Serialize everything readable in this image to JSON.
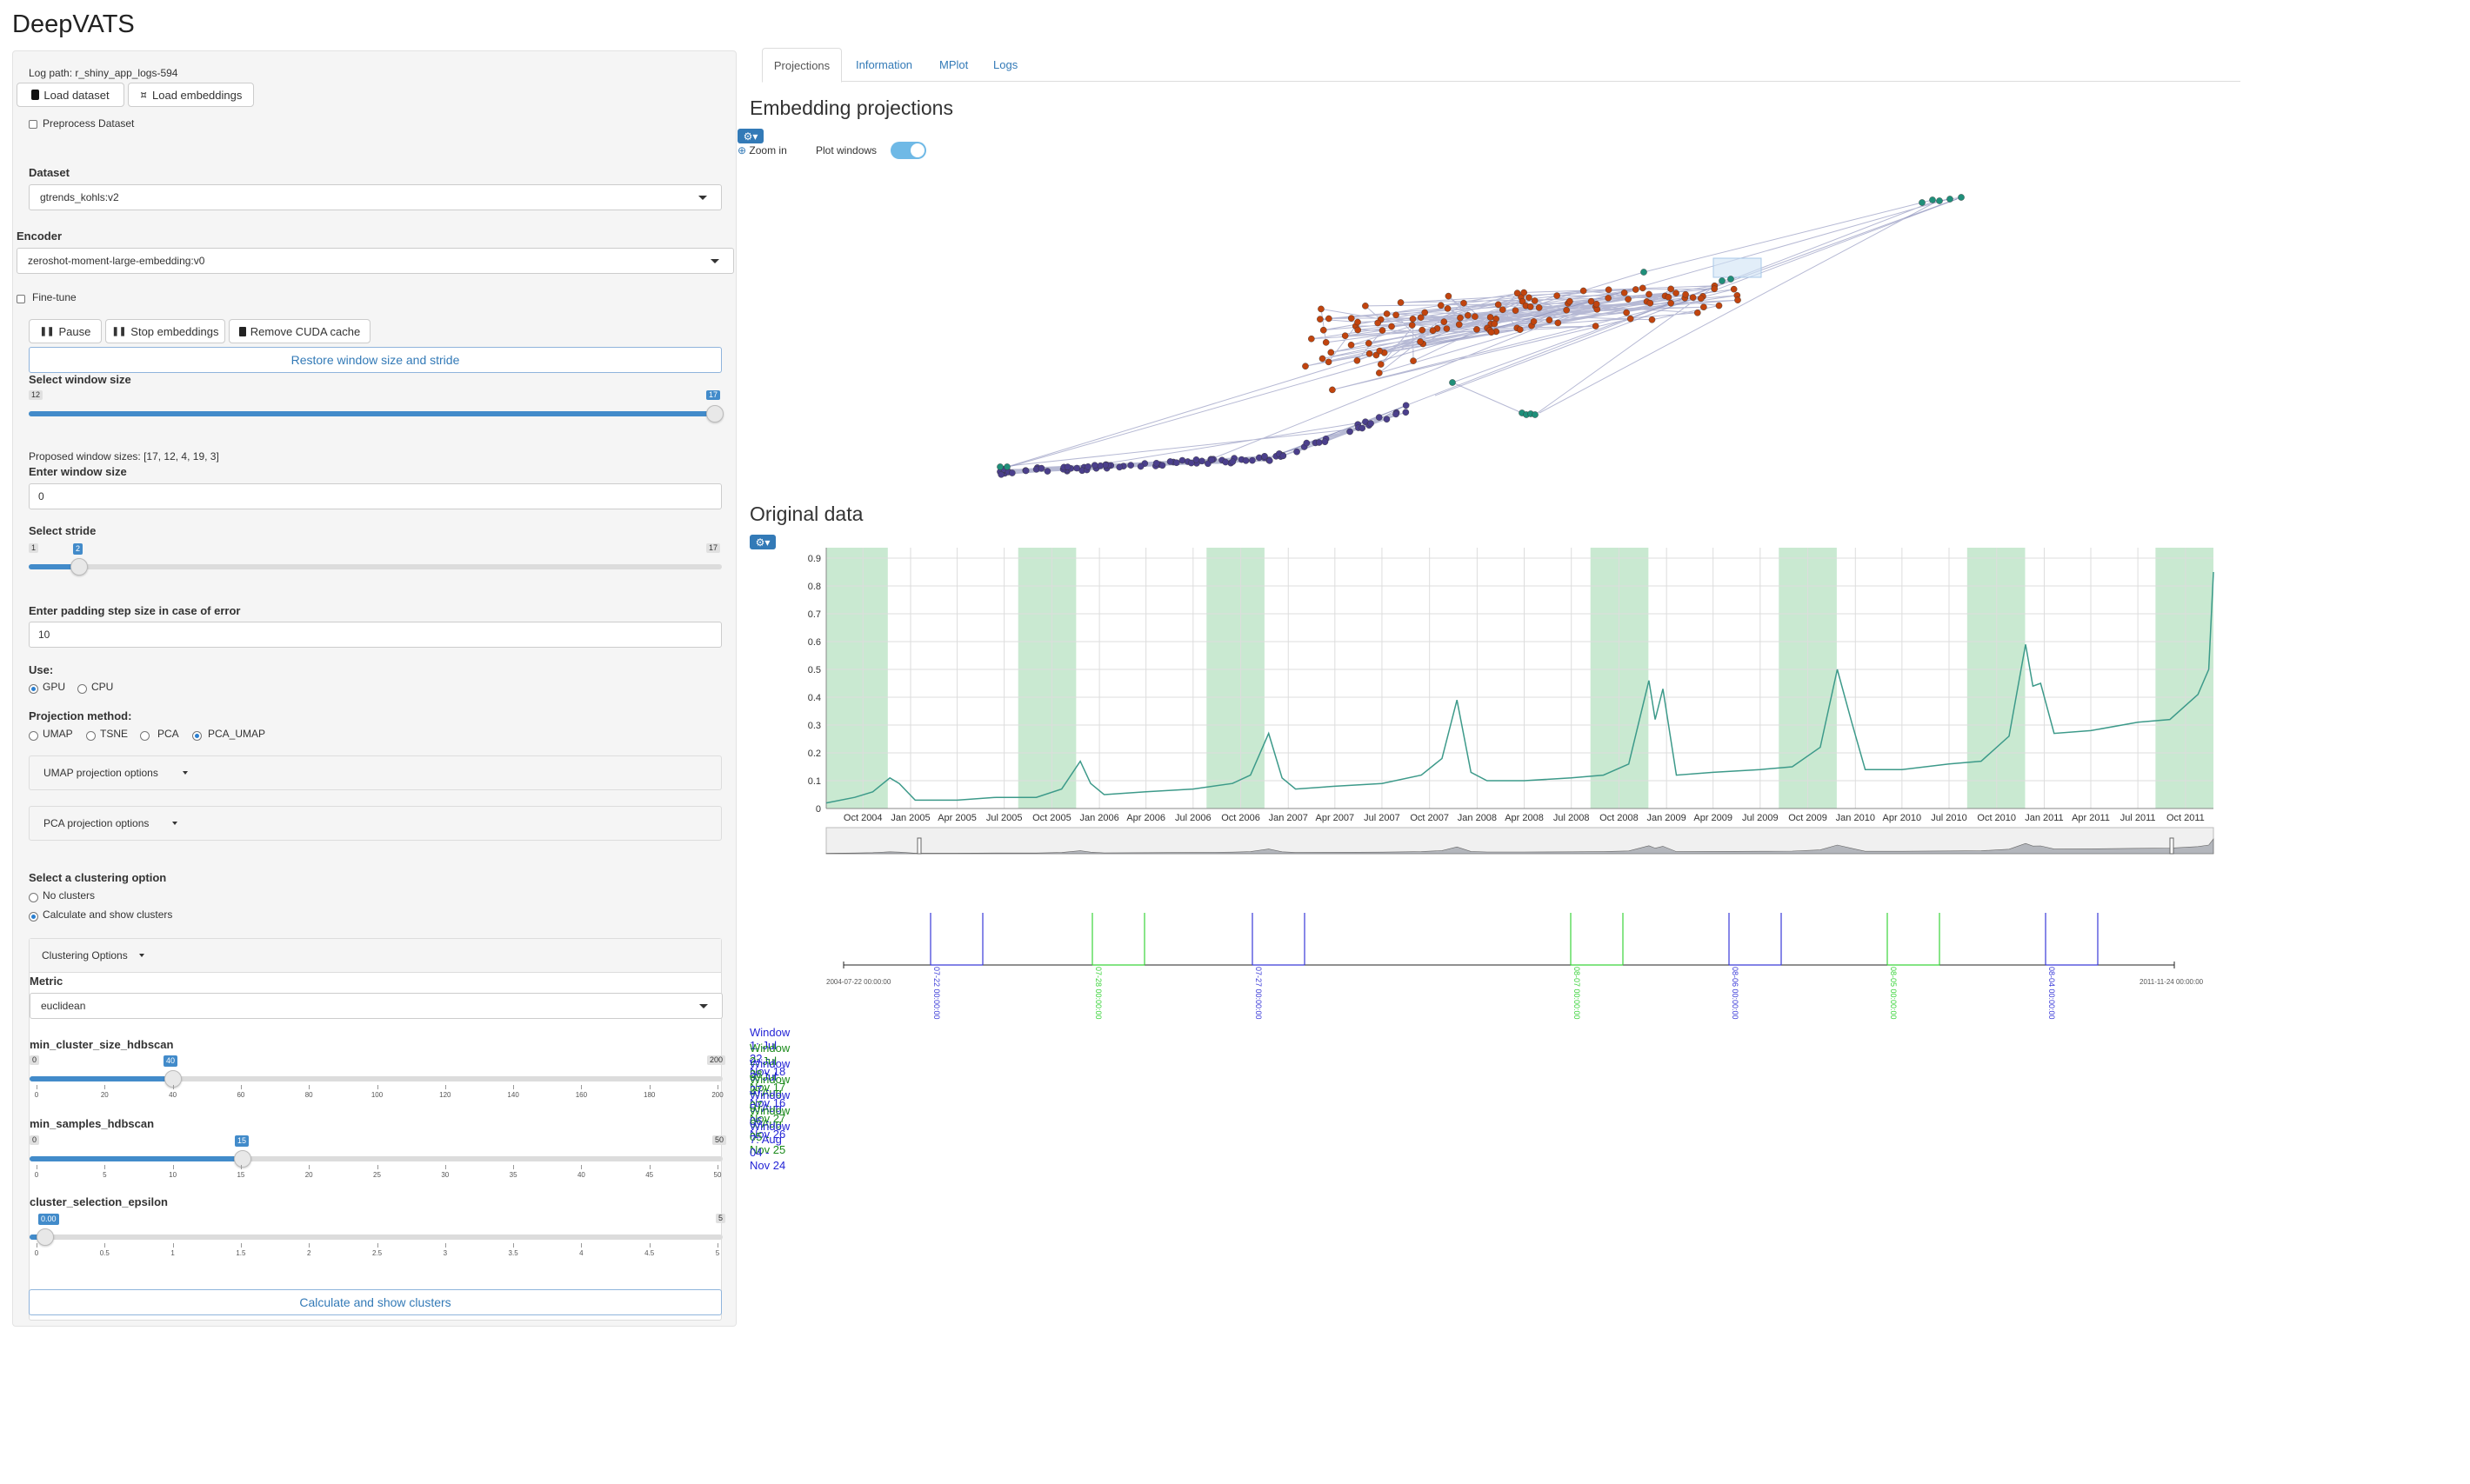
{
  "app": {
    "title": "DeepVATS"
  },
  "sidebar": {
    "log_path": "Log path: r_shiny_app_logs-594",
    "load_dataset": "Load dataset",
    "load_embeddings": "Load embeddings",
    "preprocess": "Preprocess Dataset",
    "dataset_label": "Dataset",
    "dataset_value": "gtrends_kohls:v2",
    "encoder_label": "Encoder",
    "encoder_value": "zeroshot-moment-large-embedding:v0",
    "finetune": "Fine-tune",
    "pause": "Pause",
    "stop_embeddings": "Stop embeddings",
    "remove_cuda": "Remove CUDA cache",
    "restore": "Restore window size and stride",
    "window_size_label": "Select window size",
    "window_size_min": "12",
    "window_size_max": "17",
    "window_size_value": "17",
    "window_size_fraction": 1.0,
    "proposed": "Proposed window sizes: [17, 12, 4, 19, 3]",
    "enter_window_label": "Enter window size",
    "enter_window_value": "0",
    "stride_label": "Select stride",
    "stride_min": "1",
    "stride_max": "17",
    "stride_value": "2",
    "padding_label": "Enter padding step size in case of error",
    "padding_value": "10",
    "use_label": "Use:",
    "use_gpu": "GPU",
    "use_cpu": "CPU",
    "projection_label": "Projection method:",
    "proj_umap": "UMAP",
    "proj_tsne": "TSNE",
    "proj_pca": "PCA",
    "proj_pcaumap": "PCA_UMAP",
    "umap_options": "UMAP projection options",
    "pca_options": "PCA projection options",
    "clustering_label": "Select a clustering option",
    "no_clusters": "No clusters",
    "calc_clusters": "Calculate and show clusters",
    "clustering_options": "Clustering Options",
    "metric_label": "Metric",
    "metric_value": "euclidean",
    "mcs_label": "min_cluster_size_hdbscan",
    "mcs_min": "0",
    "mcs_max": "200",
    "mcs_value": "40",
    "mcs_ticks": [
      "0",
      "20",
      "40",
      "60",
      "80",
      "100",
      "120",
      "140",
      "160",
      "180",
      "200"
    ],
    "ms_label": "min_samples_hdbscan",
    "ms_min": "0",
    "ms_max": "50",
    "ms_value": "15",
    "ms_ticks": [
      "0",
      "5",
      "10",
      "15",
      "20",
      "25",
      "30",
      "35",
      "40",
      "45",
      "50"
    ],
    "eps_label": "cluster_selection_epsilon",
    "eps_max": "5",
    "eps_value": "0.00",
    "eps_ticks": [
      "0",
      "0.5",
      "1",
      "1.5",
      "2",
      "2.5",
      "3",
      "3.5",
      "4",
      "4.5",
      "5"
    ],
    "calc_button": "Calculate and show clusters"
  },
  "tabs": [
    "Projections",
    "Information",
    "MPlot",
    "Logs"
  ],
  "projections": {
    "title": "Embedding projections",
    "zoom_in": "Zoom in",
    "plot_windows": "Plot windows",
    "plot_windows_on": true
  },
  "original": {
    "title": "Original data"
  },
  "timeline": {
    "start": "2004-07-22 00:00:00",
    "end": "2011-11-24 00:00:00",
    "markers": [
      {
        "label": "07-22 00:00:00",
        "color": "#3a3ad8"
      },
      {
        "label": "07-28 00:00:00",
        "color": "#3bd43b"
      },
      {
        "label": "07-27 00:00:00",
        "color": "#3a3ad8"
      },
      {
        "label": "08-07 00:00:00",
        "color": "#3bd43b"
      },
      {
        "label": "08-06 00:00:00",
        "color": "#3a3ad8"
      },
      {
        "label": "08-05 00:00:00",
        "color": "#3bd43b"
      },
      {
        "label": "08-04 00:00:00",
        "color": "#3a3ad8"
      }
    ]
  },
  "windows": [
    {
      "label": "Window 1: Jul 22 - Nov 18",
      "color": "#2424d6"
    },
    {
      "label": "Window 2: Jul 28 - Nov 17",
      "color": "#1a8a1a"
    },
    {
      "label": "Window 3: Jul 27 - Nov 16",
      "color": "#2424d6"
    },
    {
      "label": "Window 4: Aug 07 - Nov 27",
      "color": "#1a8a1a"
    },
    {
      "label": "Window 5: Aug 06 - Nov 26",
      "color": "#2424d6"
    },
    {
      "label": "Window 6: Aug 05 - Nov 25",
      "color": "#1a8a1a"
    },
    {
      "label": "Window 7: Aug 04 - Nov 24",
      "color": "#2424d6"
    }
  ],
  "chart_data": {
    "type": "line",
    "title": "",
    "x_tick_labels": [
      "Oct 2004",
      "Jan 2005",
      "Apr 2005",
      "Jul 2005",
      "Oct 2005",
      "Jan 2006",
      "Apr 2006",
      "Jul 2006",
      "Oct 2006",
      "Jan 2007",
      "Apr 2007",
      "Jul 2007",
      "Oct 2007",
      "Jan 2008",
      "Apr 2008",
      "Jul 2008",
      "Oct 2008",
      "Jan 2009",
      "Apr 2009",
      "Jul 2009",
      "Oct 2009",
      "Jan 2010",
      "Apr 2010",
      "Jul 2010",
      "Oct 2010",
      "Jan 2011",
      "Apr 2011",
      "Jul 2011",
      "Oct 2011"
    ],
    "x_range": [
      "2004-07-22",
      "2011-11-24"
    ],
    "ylim": [
      0,
      0.9
    ],
    "y_ticks": [
      0,
      0.1,
      0.2,
      0.3,
      0.4,
      0.5,
      0.6,
      0.7,
      0.8,
      0.9
    ],
    "grid": true,
    "series": [
      {
        "color": "#3d9a8a",
        "points": [
          [
            "2004-07-22",
            0.02
          ],
          [
            "2004-09-15",
            0.04
          ],
          [
            "2004-10-20",
            0.06
          ],
          [
            "2004-11-22",
            0.11
          ],
          [
            "2004-12-10",
            0.09
          ],
          [
            "2005-01-10",
            0.03
          ],
          [
            "2005-04-01",
            0.03
          ],
          [
            "2005-06-15",
            0.04
          ],
          [
            "2005-09-01",
            0.04
          ],
          [
            "2005-10-20",
            0.07
          ],
          [
            "2005-11-25",
            0.17
          ],
          [
            "2005-12-15",
            0.09
          ],
          [
            "2006-01-10",
            0.05
          ],
          [
            "2006-04-01",
            0.06
          ],
          [
            "2006-07-01",
            0.07
          ],
          [
            "2006-09-15",
            0.09
          ],
          [
            "2006-10-20",
            0.12
          ],
          [
            "2006-11-24",
            0.27
          ],
          [
            "2006-12-20",
            0.11
          ],
          [
            "2007-01-15",
            0.07
          ],
          [
            "2007-04-01",
            0.08
          ],
          [
            "2007-07-01",
            0.09
          ],
          [
            "2007-09-15",
            0.12
          ],
          [
            "2007-10-25",
            0.18
          ],
          [
            "2007-11-23",
            0.39
          ],
          [
            "2007-12-20",
            0.13
          ],
          [
            "2008-01-20",
            0.1
          ],
          [
            "2008-04-01",
            0.1
          ],
          [
            "2008-07-01",
            0.11
          ],
          [
            "2008-09-01",
            0.12
          ],
          [
            "2008-10-20",
            0.16
          ],
          [
            "2008-11-28",
            0.46
          ],
          [
            "2008-12-10",
            0.32
          ],
          [
            "2008-12-25",
            0.43
          ],
          [
            "2009-01-20",
            0.12
          ],
          [
            "2009-04-01",
            0.13
          ],
          [
            "2009-07-01",
            0.14
          ],
          [
            "2009-09-01",
            0.15
          ],
          [
            "2009-10-25",
            0.22
          ],
          [
            "2009-11-27",
            0.5
          ],
          [
            "2009-12-25",
            0.31
          ],
          [
            "2010-01-20",
            0.14
          ],
          [
            "2010-04-01",
            0.14
          ],
          [
            "2010-07-01",
            0.16
          ],
          [
            "2010-09-01",
            0.17
          ],
          [
            "2010-10-25",
            0.26
          ],
          [
            "2010-11-26",
            0.59
          ],
          [
            "2010-12-10",
            0.44
          ],
          [
            "2010-12-25",
            0.45
          ],
          [
            "2011-01-20",
            0.27
          ],
          [
            "2011-04-01",
            0.28
          ],
          [
            "2011-07-01",
            0.31
          ],
          [
            "2011-09-01",
            0.32
          ],
          [
            "2011-10-25",
            0.41
          ],
          [
            "2011-11-15",
            0.5
          ],
          [
            "2011-11-24",
            0.85
          ]
        ]
      }
    ],
    "highlight_windows": [
      [
        "2004-07-22",
        "2004-11-18"
      ],
      [
        "2005-07-28",
        "2005-11-17"
      ],
      [
        "2006-07-27",
        "2006-11-16"
      ],
      [
        "2008-08-07",
        "2008-11-27"
      ],
      [
        "2009-08-06",
        "2009-11-26"
      ],
      [
        "2010-08-05",
        "2010-11-25"
      ],
      [
        "2011-08-04",
        "2011-11-24"
      ]
    ],
    "highlight_color": "#c9e9d1"
  },
  "scatter": {
    "cluster_colors": [
      "#c1440e",
      "#4b3f8c",
      "#1f8f7a"
    ]
  }
}
